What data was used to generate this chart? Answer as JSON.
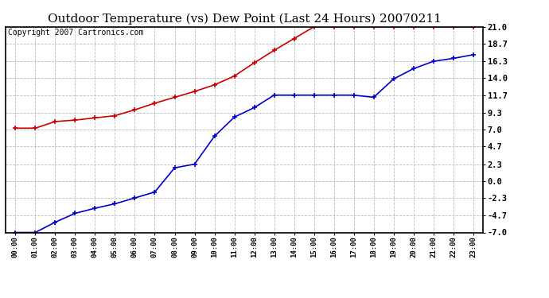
{
  "title": "Outdoor Temperature (vs) Dew Point (Last 24 Hours) 20070211",
  "copyright": "Copyright 2007 Cartronics.com",
  "x_labels": [
    "00:00",
    "01:00",
    "02:00",
    "03:00",
    "04:00",
    "05:00",
    "06:00",
    "07:00",
    "08:00",
    "09:00",
    "10:00",
    "11:00",
    "12:00",
    "13:00",
    "14:00",
    "15:00",
    "16:00",
    "17:00",
    "18:00",
    "19:00",
    "20:00",
    "21:00",
    "22:00",
    "23:00"
  ],
  "temp_data": [
    7.2,
    7.2,
    8.1,
    8.3,
    8.6,
    8.9,
    9.7,
    10.6,
    11.4,
    12.2,
    13.1,
    14.3,
    16.1,
    17.8,
    19.4,
    21.0,
    21.0,
    21.0,
    21.0,
    21.0,
    21.0,
    21.0,
    21.0,
    21.0
  ],
  "dew_data": [
    -7.0,
    -7.0,
    -5.6,
    -4.4,
    -3.7,
    -3.1,
    -2.3,
    -1.5,
    1.8,
    2.3,
    6.1,
    8.7,
    10.0,
    11.7,
    11.7,
    11.7,
    11.7,
    11.7,
    11.4,
    13.9,
    15.3,
    16.3,
    16.7,
    17.2
  ],
  "temp_color": "#cc0000",
  "dew_color": "#0000cc",
  "ytick_vals": [
    -7.0,
    -4.7,
    -2.3,
    0.0,
    2.3,
    4.7,
    7.0,
    9.3,
    11.7,
    14.0,
    16.3,
    18.7,
    21.0
  ],
  "ytick_labels": [
    "-7.0",
    "-4.7",
    "-2.3",
    "0.0",
    "2.3",
    "4.7",
    "7.0",
    "9.3",
    "11.7",
    "14.0",
    "16.3",
    "18.7",
    "21.0"
  ],
  "ylim": [
    -7.0,
    21.0
  ],
  "bg_color": "#ffffff",
  "grid_color": "#bbbbbb",
  "title_fontsize": 11,
  "copyright_fontsize": 7,
  "marker": "+",
  "marker_size": 5,
  "line_width": 1.2
}
